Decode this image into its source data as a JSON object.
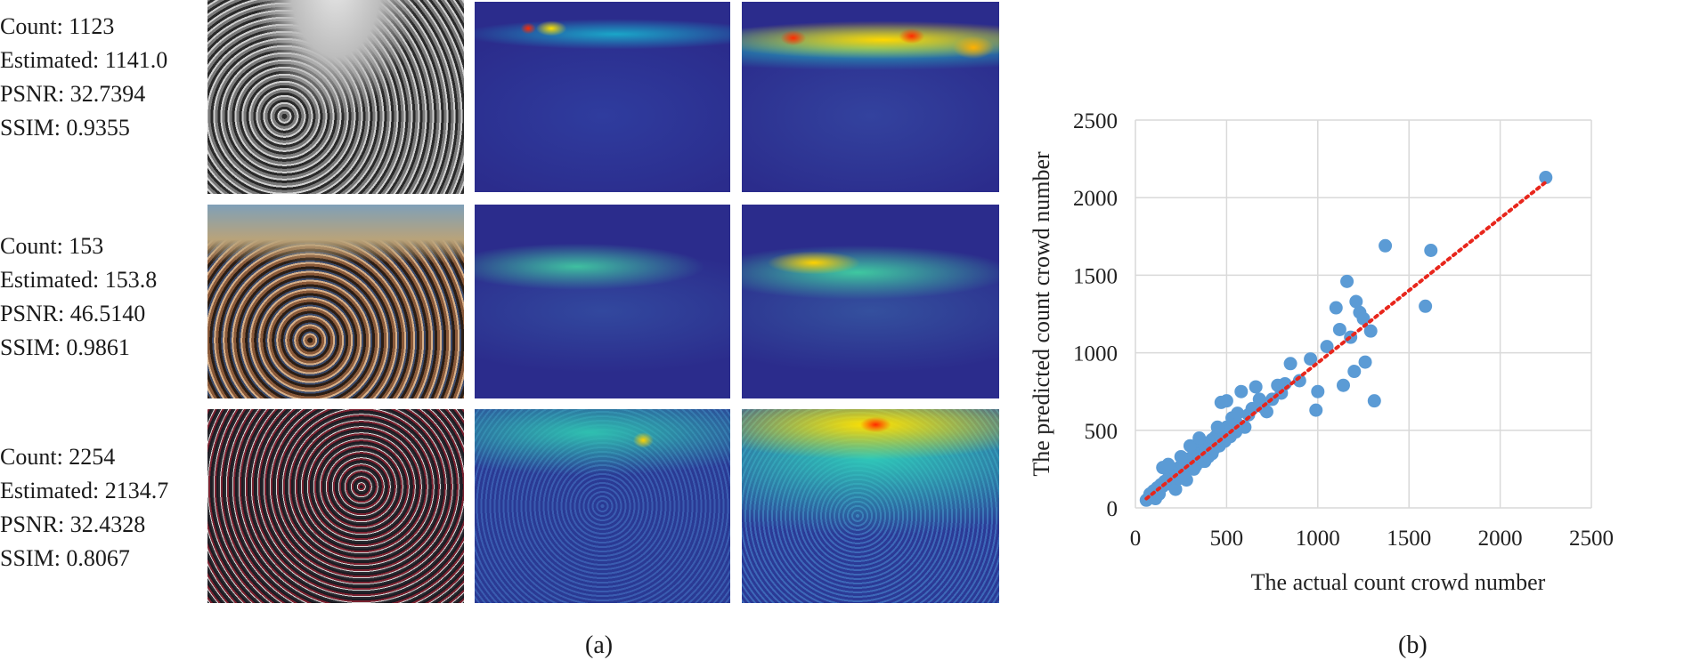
{
  "panel_a": {
    "rows": [
      {
        "count": "Count: 1123",
        "estimated": "Estimated: 1141.0",
        "psnr": "PSNR: 32.7394",
        "ssim": "SSIM: 0.9355"
      },
      {
        "count": "Count: 153",
        "estimated": "Estimated: 153.8",
        "psnr": "PSNR: 46.5140",
        "ssim": "SSIM: 0.9861"
      },
      {
        "count": "Count: 2254",
        "estimated": "Estimated: 2134.7",
        "psnr": "PSNR: 32.4328",
        "ssim": "SSIM: 0.8067"
      }
    ],
    "caption": "(a)"
  },
  "panel_b": {
    "caption": "(b)"
  },
  "chart_data": {
    "type": "scatter",
    "title": "",
    "xlabel": "The actual count crowd number",
    "ylabel": "The predicted count crowd number",
    "xlim": [
      0,
      2500
    ],
    "ylim": [
      0,
      2500
    ],
    "xticks": [
      "0",
      "500",
      "1000",
      "1500",
      "2000",
      "2500"
    ],
    "yticks": [
      "0",
      "500",
      "1000",
      "1500",
      "2000",
      "2500"
    ],
    "grid": true,
    "point_color": "#5b9bd5",
    "trend_color": "#e8261c",
    "trendline": {
      "from": [
        60,
        60
      ],
      "to": [
        2250,
        2100
      ],
      "style": "dotted"
    },
    "points": [
      [
        60,
        50
      ],
      [
        75,
        70
      ],
      [
        90,
        80
      ],
      [
        100,
        110
      ],
      [
        110,
        100
      ],
      [
        120,
        130
      ],
      [
        130,
        120
      ],
      [
        140,
        150
      ],
      [
        150,
        140
      ],
      [
        160,
        170
      ],
      [
        170,
        160
      ],
      [
        180,
        190
      ],
      [
        190,
        180
      ],
      [
        200,
        210
      ],
      [
        210,
        200
      ],
      [
        220,
        240
      ],
      [
        230,
        220
      ],
      [
        240,
        260
      ],
      [
        250,
        240
      ],
      [
        260,
        280
      ],
      [
        270,
        260
      ],
      [
        280,
        300
      ],
      [
        290,
        280
      ],
      [
        300,
        320
      ],
      [
        310,
        300
      ],
      [
        320,
        340
      ],
      [
        330,
        320
      ],
      [
        340,
        360
      ],
      [
        350,
        340
      ],
      [
        360,
        380
      ],
      [
        370,
        360
      ],
      [
        380,
        400
      ],
      [
        390,
        380
      ],
      [
        400,
        420
      ],
      [
        410,
        400
      ],
      [
        420,
        440
      ],
      [
        430,
        420
      ],
      [
        440,
        460
      ],
      [
        450,
        440
      ],
      [
        460,
        480
      ],
      [
        470,
        460
      ],
      [
        480,
        500
      ],
      [
        490,
        480
      ],
      [
        500,
        520
      ],
      [
        520,
        500
      ],
      [
        540,
        560
      ],
      [
        560,
        540
      ],
      [
        150,
        260
      ],
      [
        180,
        280
      ],
      [
        200,
        150
      ],
      [
        220,
        120
      ],
      [
        250,
        330
      ],
      [
        280,
        180
      ],
      [
        300,
        400
      ],
      [
        320,
        250
      ],
      [
        350,
        450
      ],
      [
        380,
        300
      ],
      [
        420,
        350
      ],
      [
        450,
        520
      ],
      [
        470,
        680
      ],
      [
        500,
        690
      ],
      [
        530,
        580
      ],
      [
        560,
        610
      ],
      [
        580,
        750
      ],
      [
        600,
        520
      ],
      [
        620,
        600
      ],
      [
        640,
        640
      ],
      [
        660,
        780
      ],
      [
        680,
        700
      ],
      [
        700,
        650
      ],
      [
        720,
        620
      ],
      [
        750,
        700
      ],
      [
        780,
        790
      ],
      [
        800,
        740
      ],
      [
        820,
        800
      ],
      [
        850,
        930
      ],
      [
        900,
        820
      ],
      [
        960,
        960
      ],
      [
        990,
        630
      ],
      [
        1000,
        750
      ],
      [
        1050,
        1040
      ],
      [
        1100,
        1290
      ],
      [
        1120,
        1150
      ],
      [
        1140,
        790
      ],
      [
        1160,
        1460
      ],
      [
        1180,
        1100
      ],
      [
        1200,
        880
      ],
      [
        1210,
        1330
      ],
      [
        1230,
        1260
      ],
      [
        1250,
        1220
      ],
      [
        1260,
        940
      ],
      [
        1290,
        1140
      ],
      [
        1310,
        690
      ],
      [
        1370,
        1690
      ],
      [
        1590,
        1300
      ],
      [
        1620,
        1660
      ],
      [
        2250,
        2130
      ],
      [
        110,
        60
      ],
      [
        130,
        90
      ],
      [
        240,
        190
      ],
      [
        260,
        210
      ],
      [
        330,
        270
      ],
      [
        360,
        300
      ],
      [
        400,
        330
      ],
      [
        430,
        380
      ],
      [
        460,
        400
      ],
      [
        490,
        430
      ],
      [
        520,
        460
      ],
      [
        550,
        490
      ],
      [
        80,
        90
      ]
    ]
  }
}
